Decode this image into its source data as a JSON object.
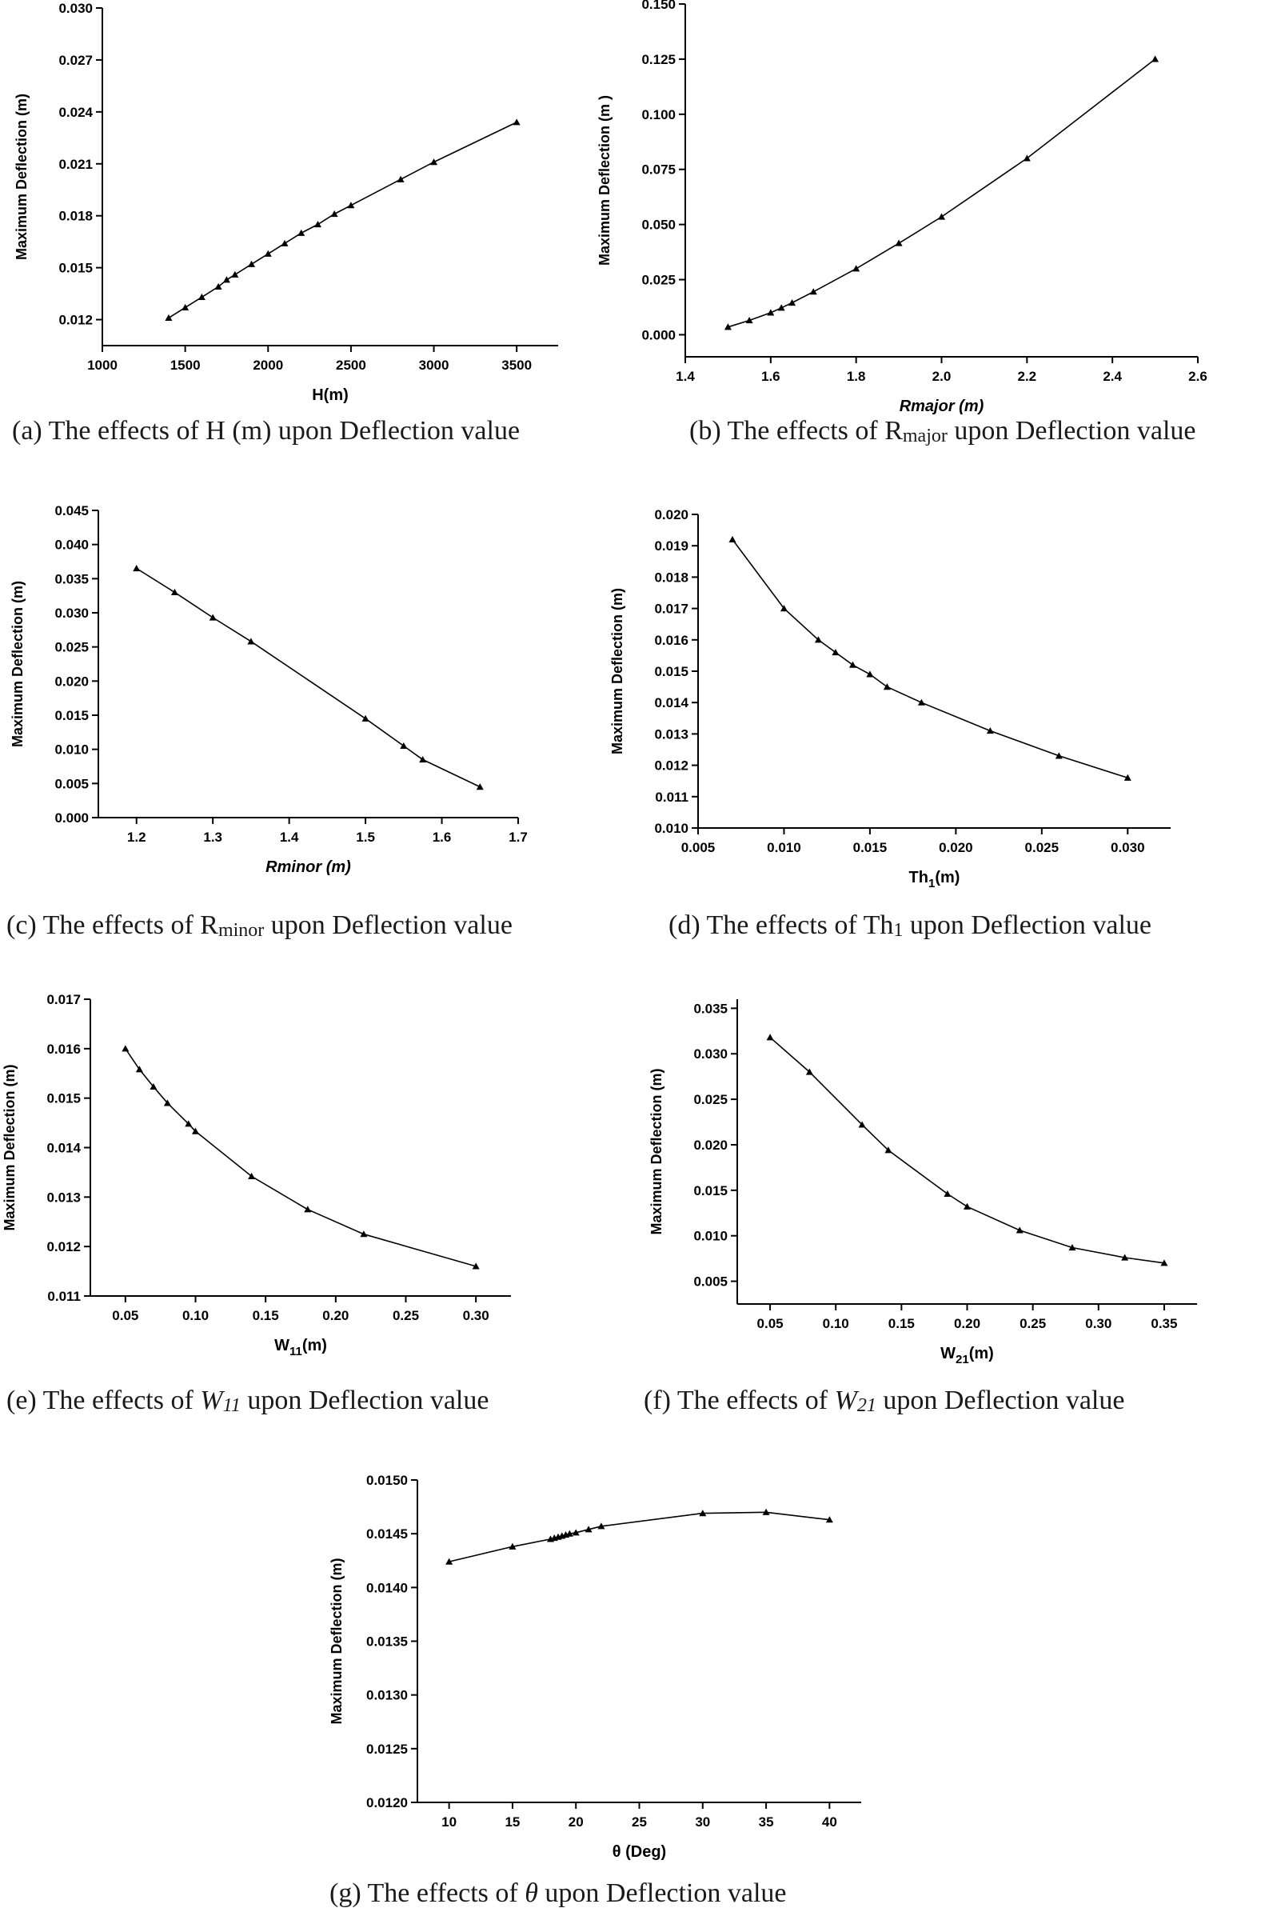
{
  "captions": [
    {
      "pre": "(a) The effects of H (m) upon Deflection value",
      "sym": "",
      "sub": "",
      "post": ""
    },
    {
      "pre": "(b) The effects of R",
      "sym": "",
      "sub": "major",
      "post": " upon Deflection value"
    },
    {
      "pre": "(c) The effects of R",
      "sym": "",
      "sub": "minor",
      "post": " upon Deflection value"
    },
    {
      "pre": "(d) The effects of Th",
      "sym": "",
      "sub": "1",
      "post": " upon Deflection value"
    },
    {
      "pre": "(e) The effects of ",
      "sym": "W",
      "sub": "11",
      "post": " upon Deflection value"
    },
    {
      "pre": "(f) The effects of ",
      "sym": "W",
      "sub": "21",
      "post": " upon Deflection value"
    },
    {
      "pre": "(g) The effects of ",
      "sym": "θ",
      "sub": "",
      "post": " upon Deflection value"
    }
  ],
  "chart_data": [
    {
      "type": "line",
      "ylabel": "Maximum Deflection (m)",
      "xlabel": "H(m)",
      "xlabel_sub": "",
      "xlabel_post": "",
      "xlabel_italic": false,
      "xlim": [
        1000,
        3750
      ],
      "ylim": [
        0.0105,
        0.03
      ],
      "xticks": [
        "1000",
        "1500",
        "2000",
        "2500",
        "3000",
        "3500"
      ],
      "yticks": [
        "0.012",
        "0.015",
        "0.018",
        "0.021",
        "0.024",
        "0.027",
        "0.030"
      ],
      "x": [
        1400,
        1500,
        1600,
        1700,
        1750,
        1800,
        1900,
        2000,
        2100,
        2200,
        2300,
        2400,
        2500,
        2800,
        3000,
        3500
      ],
      "y": [
        0.0121,
        0.0127,
        0.0133,
        0.0139,
        0.0143,
        0.0146,
        0.0152,
        0.0158,
        0.0164,
        0.017,
        0.0175,
        0.0181,
        0.0186,
        0.0201,
        0.0211,
        0.0234
      ]
    },
    {
      "type": "line",
      "ylabel": "Maximum Deflection (m )",
      "xlabel": "Rmajor (m)",
      "xlabel_sub": "",
      "xlabel_post": "",
      "xlabel_italic": true,
      "xlim": [
        1.4,
        2.6
      ],
      "ylim": [
        -0.01,
        0.15
      ],
      "xticks": [
        "1.4",
        "1.6",
        "1.8",
        "2.0",
        "2.2",
        "2.4",
        "2.6"
      ],
      "yticks": [
        "0.000",
        "0.025",
        "0.050",
        "0.075",
        "0.100",
        "0.125",
        "0.150"
      ],
      "x": [
        1.5,
        1.55,
        1.6,
        1.625,
        1.65,
        1.7,
        1.8,
        1.9,
        2.0,
        2.2,
        2.5
      ],
      "y": [
        0.0035,
        0.0065,
        0.01,
        0.0122,
        0.0145,
        0.0195,
        0.03,
        0.0415,
        0.0535,
        0.08,
        0.125
      ]
    },
    {
      "type": "line",
      "ylabel": "Maximum Deflection (m)",
      "xlabel": "Rminor (m)",
      "xlabel_sub": "",
      "xlabel_post": "",
      "xlabel_italic": true,
      "xlim": [
        1.15,
        1.7
      ],
      "ylim": [
        0.0,
        0.045
      ],
      "xticks": [
        "1.2",
        "1.3",
        "1.4",
        "1.5",
        "1.6",
        "1.7"
      ],
      "yticks": [
        "0.000",
        "0.005",
        "0.010",
        "0.015",
        "0.020",
        "0.025",
        "0.030",
        "0.035",
        "0.040",
        "0.045"
      ],
      "x": [
        1.2,
        1.25,
        1.3,
        1.35,
        1.5,
        1.55,
        1.575,
        1.65
      ],
      "y": [
        0.0365,
        0.033,
        0.0293,
        0.0258,
        0.0145,
        0.0105,
        0.0085,
        0.0045
      ]
    },
    {
      "type": "line",
      "ylabel": "Maximum Deflection (m)",
      "xlabel": "Th",
      "xlabel_sub": "1",
      "xlabel_post": "(m)",
      "xlabel_italic": false,
      "xlim": [
        0.005,
        0.0325
      ],
      "ylim": [
        0.01,
        0.02
      ],
      "xticks": [
        "0.005",
        "0.010",
        "0.015",
        "0.020",
        "0.025",
        "0.030"
      ],
      "yticks": [
        "0.010",
        "0.011",
        "0.012",
        "0.013",
        "0.014",
        "0.015",
        "0.016",
        "0.017",
        "0.018",
        "0.019",
        "0.020"
      ],
      "x": [
        0.007,
        0.01,
        0.012,
        0.013,
        0.014,
        0.015,
        0.016,
        0.018,
        0.022,
        0.026,
        0.03
      ],
      "y": [
        0.0192,
        0.017,
        0.016,
        0.0156,
        0.0152,
        0.0149,
        0.0145,
        0.014,
        0.0131,
        0.0123,
        0.0116
      ]
    },
    {
      "type": "line",
      "ylabel": "Maximum Deflection (m)",
      "xlabel": "W",
      "xlabel_sub": "11",
      "xlabel_post": "(m)",
      "xlabel_italic": false,
      "xlim": [
        0.025,
        0.325
      ],
      "ylim": [
        0.011,
        0.017
      ],
      "xticks": [
        "0.05",
        "0.10",
        "0.15",
        "0.20",
        "0.25",
        "0.30"
      ],
      "yticks": [
        "0.011",
        "0.012",
        "0.013",
        "0.014",
        "0.015",
        "0.016",
        "0.017"
      ],
      "x": [
        0.05,
        0.06,
        0.07,
        0.08,
        0.095,
        0.1,
        0.14,
        0.18,
        0.22,
        0.3
      ],
      "y": [
        0.016,
        0.01558,
        0.01523,
        0.0149,
        0.01448,
        0.01433,
        0.01342,
        0.01275,
        0.01225,
        0.0116
      ]
    },
    {
      "type": "line",
      "ylabel": "Maximum Deflection (m)",
      "xlabel": "W",
      "xlabel_sub": "21",
      "xlabel_post": "(m)",
      "xlabel_italic": false,
      "xlim": [
        0.025,
        0.375
      ],
      "ylim": [
        0.0025,
        0.036
      ],
      "xticks": [
        "0.05",
        "0.10",
        "0.15",
        "0.20",
        "0.25",
        "0.30",
        "0.35"
      ],
      "yticks": [
        "0.005",
        "0.010",
        "0.015",
        "0.020",
        "0.025",
        "0.030",
        "0.035"
      ],
      "x": [
        0.05,
        0.08,
        0.12,
        0.14,
        0.185,
        0.2,
        0.24,
        0.28,
        0.32,
        0.35
      ],
      "y": [
        0.0318,
        0.028,
        0.0222,
        0.0194,
        0.0146,
        0.0132,
        0.0106,
        0.0087,
        0.0076,
        0.007
      ]
    },
    {
      "type": "line",
      "ylabel": "Maximum Deflection (m)",
      "xlabel": "θ (Deg)",
      "xlabel_sub": "",
      "xlabel_post": "",
      "xlabel_italic": false,
      "xlim": [
        7.5,
        42.5
      ],
      "ylim": [
        0.012,
        0.015
      ],
      "xticks": [
        "10",
        "15",
        "20",
        "25",
        "30",
        "35",
        "40"
      ],
      "yticks": [
        "0.0120",
        "0.0125",
        "0.0130",
        "0.0135",
        "0.0140",
        "0.0145",
        "0.0150"
      ],
      "x": [
        10,
        15,
        18,
        18.3,
        18.6,
        18.9,
        19.2,
        19.5,
        20,
        21,
        22,
        30,
        35,
        40
      ],
      "y": [
        0.01424,
        0.01438,
        0.01445,
        0.01446,
        0.01447,
        0.01448,
        0.01449,
        0.0145,
        0.01451,
        0.01454,
        0.01457,
        0.01469,
        0.0147,
        0.01463
      ]
    }
  ]
}
